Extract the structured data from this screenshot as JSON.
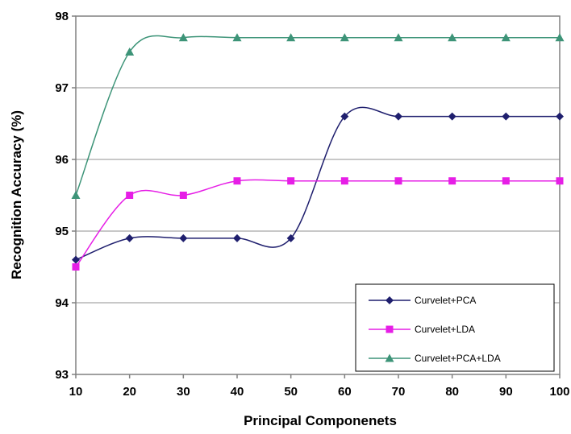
{
  "chart_data": {
    "type": "line",
    "title": "",
    "xlabel": "Principal Componenets",
    "ylabel": "Recognition Accuracy (%)",
    "x": [
      10,
      20,
      30,
      40,
      50,
      60,
      70,
      80,
      90,
      100
    ],
    "xlim": [
      10,
      100
    ],
    "ylim": [
      93,
      98
    ],
    "xticks": [
      10,
      20,
      30,
      40,
      50,
      60,
      70,
      80,
      90,
      100
    ],
    "yticks": [
      93,
      94,
      95,
      96,
      97,
      98
    ],
    "grid": "horizontal",
    "legend_position": "bottom-right",
    "series": [
      {
        "name": "Curvelet+PCA",
        "color": "#1f1f6e",
        "marker": "diamond",
        "values": [
          94.6,
          94.9,
          94.9,
          94.9,
          94.9,
          96.6,
          96.6,
          96.6,
          96.6,
          96.6
        ]
      },
      {
        "name": "Curvelet+LDA",
        "color": "#e61ee6",
        "marker": "square",
        "values": [
          94.5,
          95.5,
          95.5,
          95.7,
          95.7,
          95.7,
          95.7,
          95.7,
          95.7,
          95.7
        ]
      },
      {
        "name": "Curvelet+PCA+LDA",
        "color": "#3d9478",
        "marker": "triangle",
        "values": [
          95.5,
          97.5,
          97.7,
          97.7,
          97.7,
          97.7,
          97.7,
          97.7,
          97.7,
          97.7
        ]
      }
    ]
  }
}
